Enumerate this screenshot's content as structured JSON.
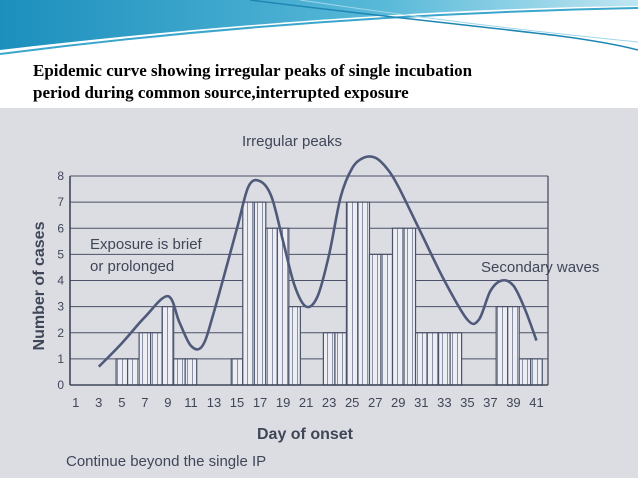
{
  "slide": {
    "title_line1": "Epidemic curve showing irregular peaks of single incubation",
    "title_line2": "period during common source,interrupted exposure"
  },
  "colors": {
    "header_teal": "#2a9cc2",
    "bar_fill": "#eceef4",
    "bar_hatch": "#7c8498",
    "curve": "#4f5a7a",
    "ink": "#3f4658",
    "photo_background": "#dcdde2"
  },
  "chart_data": {
    "type": "bar",
    "xlabel": "Day of onset",
    "ylabel": "Number of cases",
    "ylim": [
      0,
      8
    ],
    "yticks": [
      0,
      1,
      2,
      3,
      4,
      5,
      6,
      7,
      8
    ],
    "xticks": [
      1,
      3,
      5,
      7,
      9,
      11,
      13,
      15,
      17,
      19,
      21,
      23,
      25,
      27,
      29,
      31,
      33,
      35,
      37,
      39,
      41
    ],
    "grid": true,
    "bars": [
      {
        "day": 5,
        "value": 1
      },
      {
        "day": 6,
        "value": 1
      },
      {
        "day": 7,
        "value": 2
      },
      {
        "day": 8,
        "value": 2
      },
      {
        "day": 9,
        "value": 3
      },
      {
        "day": 10,
        "value": 1
      },
      {
        "day": 11,
        "value": 1
      },
      {
        "day": 15,
        "value": 1
      },
      {
        "day": 16,
        "value": 7
      },
      {
        "day": 17,
        "value": 7
      },
      {
        "day": 18,
        "value": 6
      },
      {
        "day": 19,
        "value": 6
      },
      {
        "day": 20,
        "value": 3
      },
      {
        "day": 23,
        "value": 2
      },
      {
        "day": 24,
        "value": 2
      },
      {
        "day": 25,
        "value": 7
      },
      {
        "day": 26,
        "value": 7
      },
      {
        "day": 27,
        "value": 5
      },
      {
        "day": 28,
        "value": 5
      },
      {
        "day": 29,
        "value": 6
      },
      {
        "day": 30,
        "value": 6
      },
      {
        "day": 31,
        "value": 2
      },
      {
        "day": 32,
        "value": 2
      },
      {
        "day": 33,
        "value": 2
      },
      {
        "day": 34,
        "value": 2
      },
      {
        "day": 38,
        "value": 3
      },
      {
        "day": 39,
        "value": 3
      },
      {
        "day": 40,
        "value": 1
      },
      {
        "day": 41,
        "value": 1
      }
    ],
    "curve": [
      [
        3,
        0.7
      ],
      [
        5,
        1.6
      ],
      [
        7,
        2.6
      ],
      [
        9,
        3.4
      ],
      [
        10,
        2.4
      ],
      [
        11,
        1.5
      ],
      [
        12,
        1.5
      ],
      [
        13,
        2.8
      ],
      [
        15,
        6.0
      ],
      [
        16,
        7.6
      ],
      [
        17,
        7.8
      ],
      [
        18,
        7.2
      ],
      [
        19,
        5.5
      ],
      [
        20,
        3.8
      ],
      [
        21,
        3.0
      ],
      [
        22,
        3.4
      ],
      [
        23,
        5.0
      ],
      [
        24,
        7.2
      ],
      [
        25,
        8.3
      ],
      [
        26,
        8.7
      ],
      [
        27,
        8.7
      ],
      [
        28,
        8.3
      ],
      [
        29,
        7.6
      ],
      [
        31,
        5.8
      ],
      [
        33,
        4.0
      ],
      [
        35,
        2.5
      ],
      [
        36,
        2.5
      ],
      [
        37,
        3.6
      ],
      [
        38,
        4.0
      ],
      [
        39,
        3.8
      ],
      [
        40,
        2.9
      ],
      [
        41,
        1.7
      ]
    ],
    "annotations": {
      "peaks": "Irregular peaks",
      "exposure_line1": "Exposure is brief",
      "exposure_line2": "or prolonged",
      "secondary": "Secondary waves",
      "footnote": "Continue beyond the single IP"
    }
  }
}
